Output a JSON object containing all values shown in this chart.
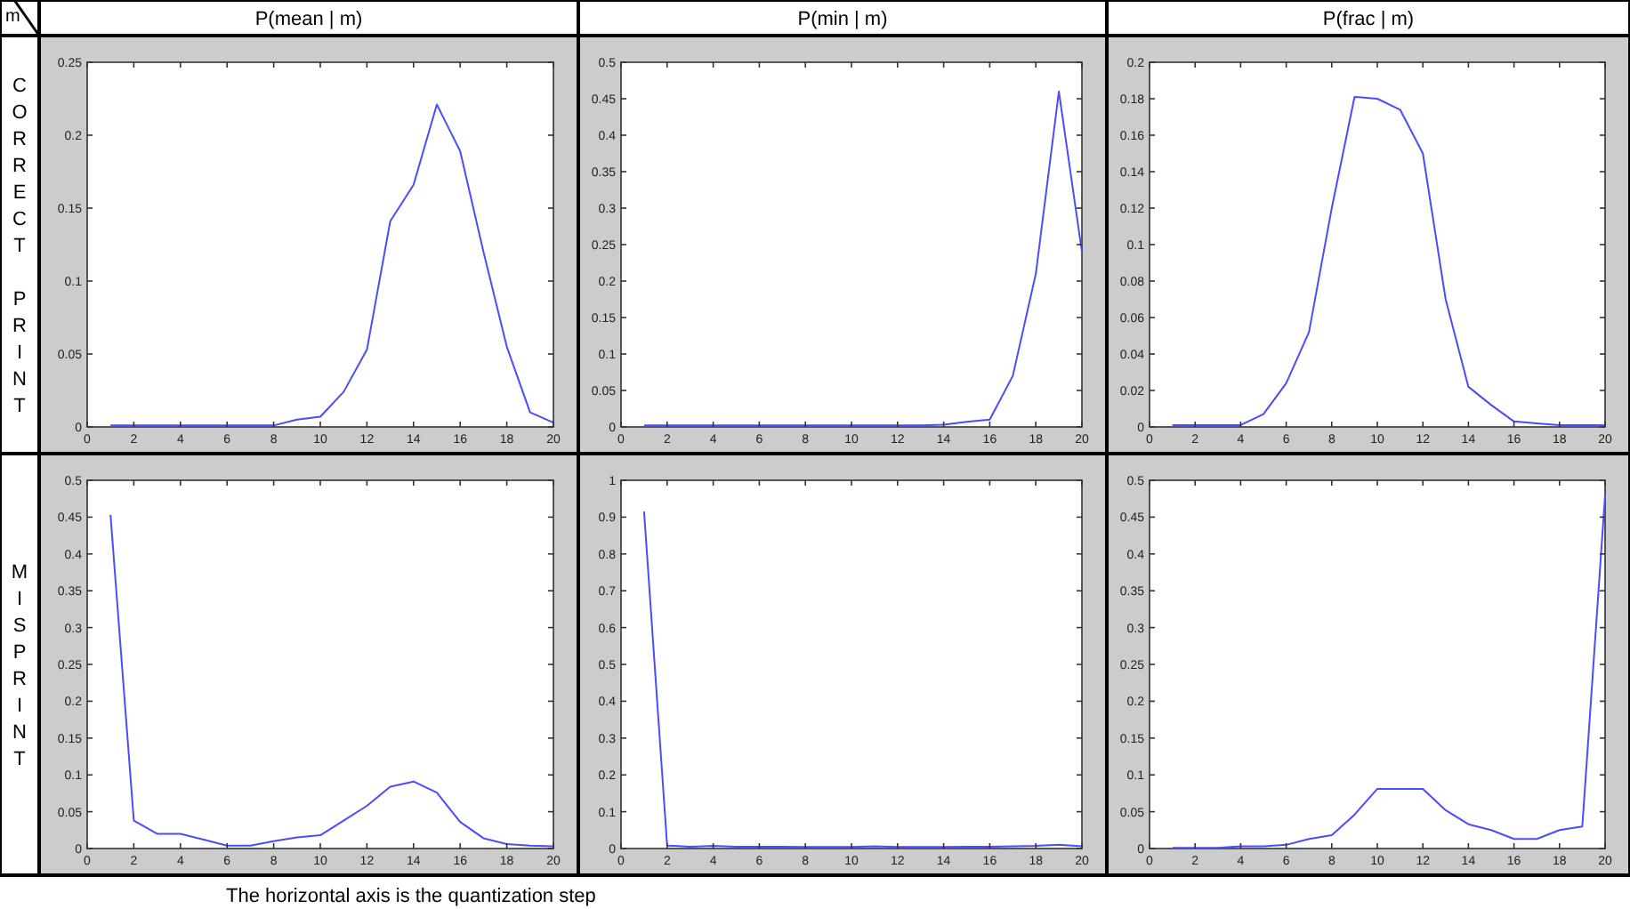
{
  "chart_data": [
    {
      "type": "line",
      "title": "P(mean | m)",
      "ylabel": "CORRECT PRINT",
      "annotations": [
        "m"
      ],
      "x": [
        1,
        2,
        3,
        4,
        5,
        6,
        7,
        8,
        9,
        10,
        11,
        12,
        13,
        14,
        15,
        16,
        17,
        18,
        19,
        20
      ],
      "series": [
        {
          "color": "#4b4bff",
          "values": [
            0.001,
            0.001,
            0.001,
            0.001,
            0.001,
            0.001,
            0.001,
            0.001,
            0.005,
            0.007,
            0.024,
            0.053,
            0.141,
            0.166,
            0.221,
            0.189,
            0.12,
            0.055,
            0.01,
            0.003
          ]
        }
      ],
      "xlim": [
        0,
        20
      ],
      "xticks": [
        0,
        2,
        4,
        6,
        8,
        10,
        12,
        14,
        16,
        18,
        20
      ],
      "ylim": [
        0,
        0.25
      ],
      "yticks": [
        0,
        0.05,
        0.1,
        0.15,
        0.2,
        0.25
      ]
    },
    {
      "type": "line",
      "title": "P(min | m)",
      "x": [
        1,
        2,
        3,
        4,
        5,
        6,
        7,
        8,
        9,
        10,
        11,
        12,
        13,
        14,
        15,
        16,
        17,
        18,
        19,
        20
      ],
      "series": [
        {
          "color": "#4b4bff",
          "values": [
            0.002,
            0.002,
            0.002,
            0.002,
            0.002,
            0.002,
            0.002,
            0.002,
            0.002,
            0.002,
            0.002,
            0.002,
            0.002,
            0.003,
            0.007,
            0.01,
            0.07,
            0.21,
            0.46,
            0.24
          ]
        }
      ],
      "xlim": [
        0,
        20
      ],
      "xticks": [
        0,
        2,
        4,
        6,
        8,
        10,
        12,
        14,
        16,
        18,
        20
      ],
      "ylim": [
        0,
        0.5
      ],
      "yticks": [
        0,
        0.05,
        0.1,
        0.15,
        0.2,
        0.25,
        0.3,
        0.35,
        0.4,
        0.45,
        0.5
      ]
    },
    {
      "type": "line",
      "title": "P(frac | m)",
      "x": [
        1,
        2,
        3,
        4,
        5,
        6,
        7,
        8,
        9,
        10,
        11,
        12,
        13,
        14,
        15,
        16,
        17,
        18,
        19,
        20
      ],
      "series": [
        {
          "color": "#4b4bff",
          "values": [
            0.001,
            0.001,
            0.001,
            0.001,
            0.007,
            0.024,
            0.052,
            0.12,
            0.181,
            0.18,
            0.174,
            0.15,
            0.07,
            0.022,
            0.012,
            0.003,
            0.002,
            0.001,
            0.001,
            0.001
          ]
        }
      ],
      "xlim": [
        0,
        20
      ],
      "xticks": [
        0,
        2,
        4,
        6,
        8,
        10,
        12,
        14,
        16,
        18,
        20
      ],
      "ylim": [
        0,
        0.2
      ],
      "yticks": [
        0,
        0.02,
        0.04,
        0.06,
        0.08,
        0.1,
        0.12,
        0.14,
        0.16,
        0.18,
        0.2
      ]
    },
    {
      "type": "line",
      "ylabel": "MISPRINT",
      "annotations": [
        "The horizontal axis is the quantization step"
      ],
      "x": [
        1,
        2,
        3,
        4,
        5,
        6,
        7,
        8,
        9,
        10,
        11,
        12,
        13,
        14,
        15,
        16,
        17,
        18,
        19,
        20
      ],
      "series": [
        {
          "color": "#4b4bff",
          "values": [
            0.453,
            0.038,
            0.02,
            0.02,
            0.012,
            0.004,
            0.004,
            0.01,
            0.015,
            0.018,
            0.038,
            0.058,
            0.084,
            0.091,
            0.076,
            0.036,
            0.014,
            0.006,
            0.004,
            0.003
          ]
        }
      ],
      "xlim": [
        0,
        20
      ],
      "xticks": [
        0,
        2,
        4,
        6,
        8,
        10,
        12,
        14,
        16,
        18,
        20
      ],
      "ylim": [
        0,
        0.5
      ],
      "yticks": [
        0,
        0.05,
        0.1,
        0.15,
        0.2,
        0.25,
        0.3,
        0.35,
        0.4,
        0.45,
        0.5
      ]
    },
    {
      "type": "line",
      "x": [
        1,
        2,
        3,
        4,
        5,
        6,
        7,
        8,
        9,
        10,
        11,
        12,
        13,
        14,
        15,
        16,
        17,
        18,
        19,
        20
      ],
      "series": [
        {
          "color": "#4b4bff",
          "values": [
            0.915,
            0.008,
            0.005,
            0.007,
            0.005,
            0.005,
            0.005,
            0.004,
            0.004,
            0.004,
            0.006,
            0.004,
            0.004,
            0.004,
            0.005,
            0.005,
            0.006,
            0.007,
            0.01,
            0.006
          ]
        }
      ],
      "xlim": [
        0,
        20
      ],
      "xticks": [
        0,
        2,
        4,
        6,
        8,
        10,
        12,
        14,
        16,
        18,
        20
      ],
      "ylim": [
        0,
        1
      ],
      "yticks": [
        0,
        0.1,
        0.2,
        0.3,
        0.4,
        0.5,
        0.6,
        0.7,
        0.8,
        0.9,
        1
      ]
    },
    {
      "type": "line",
      "x": [
        1,
        2,
        3,
        4,
        5,
        6,
        7,
        8,
        9,
        10,
        11,
        12,
        13,
        14,
        15,
        16,
        17,
        18,
        19,
        20
      ],
      "series": [
        {
          "color": "#4b4bff",
          "values": [
            0.001,
            0.001,
            0.001,
            0.003,
            0.003,
            0.005,
            0.013,
            0.018,
            0.046,
            0.081,
            0.081,
            0.081,
            0.052,
            0.033,
            0.025,
            0.013,
            0.013,
            0.025,
            0.03,
            0.48
          ]
        }
      ],
      "xlim": [
        0,
        20
      ],
      "xticks": [
        0,
        2,
        4,
        6,
        8,
        10,
        12,
        14,
        16,
        18,
        20
      ],
      "ylim": [
        0,
        0.5
      ],
      "yticks": [
        0,
        0.05,
        0.1,
        0.15,
        0.2,
        0.25,
        0.3,
        0.35,
        0.4,
        0.45,
        0.5
      ]
    }
  ]
}
